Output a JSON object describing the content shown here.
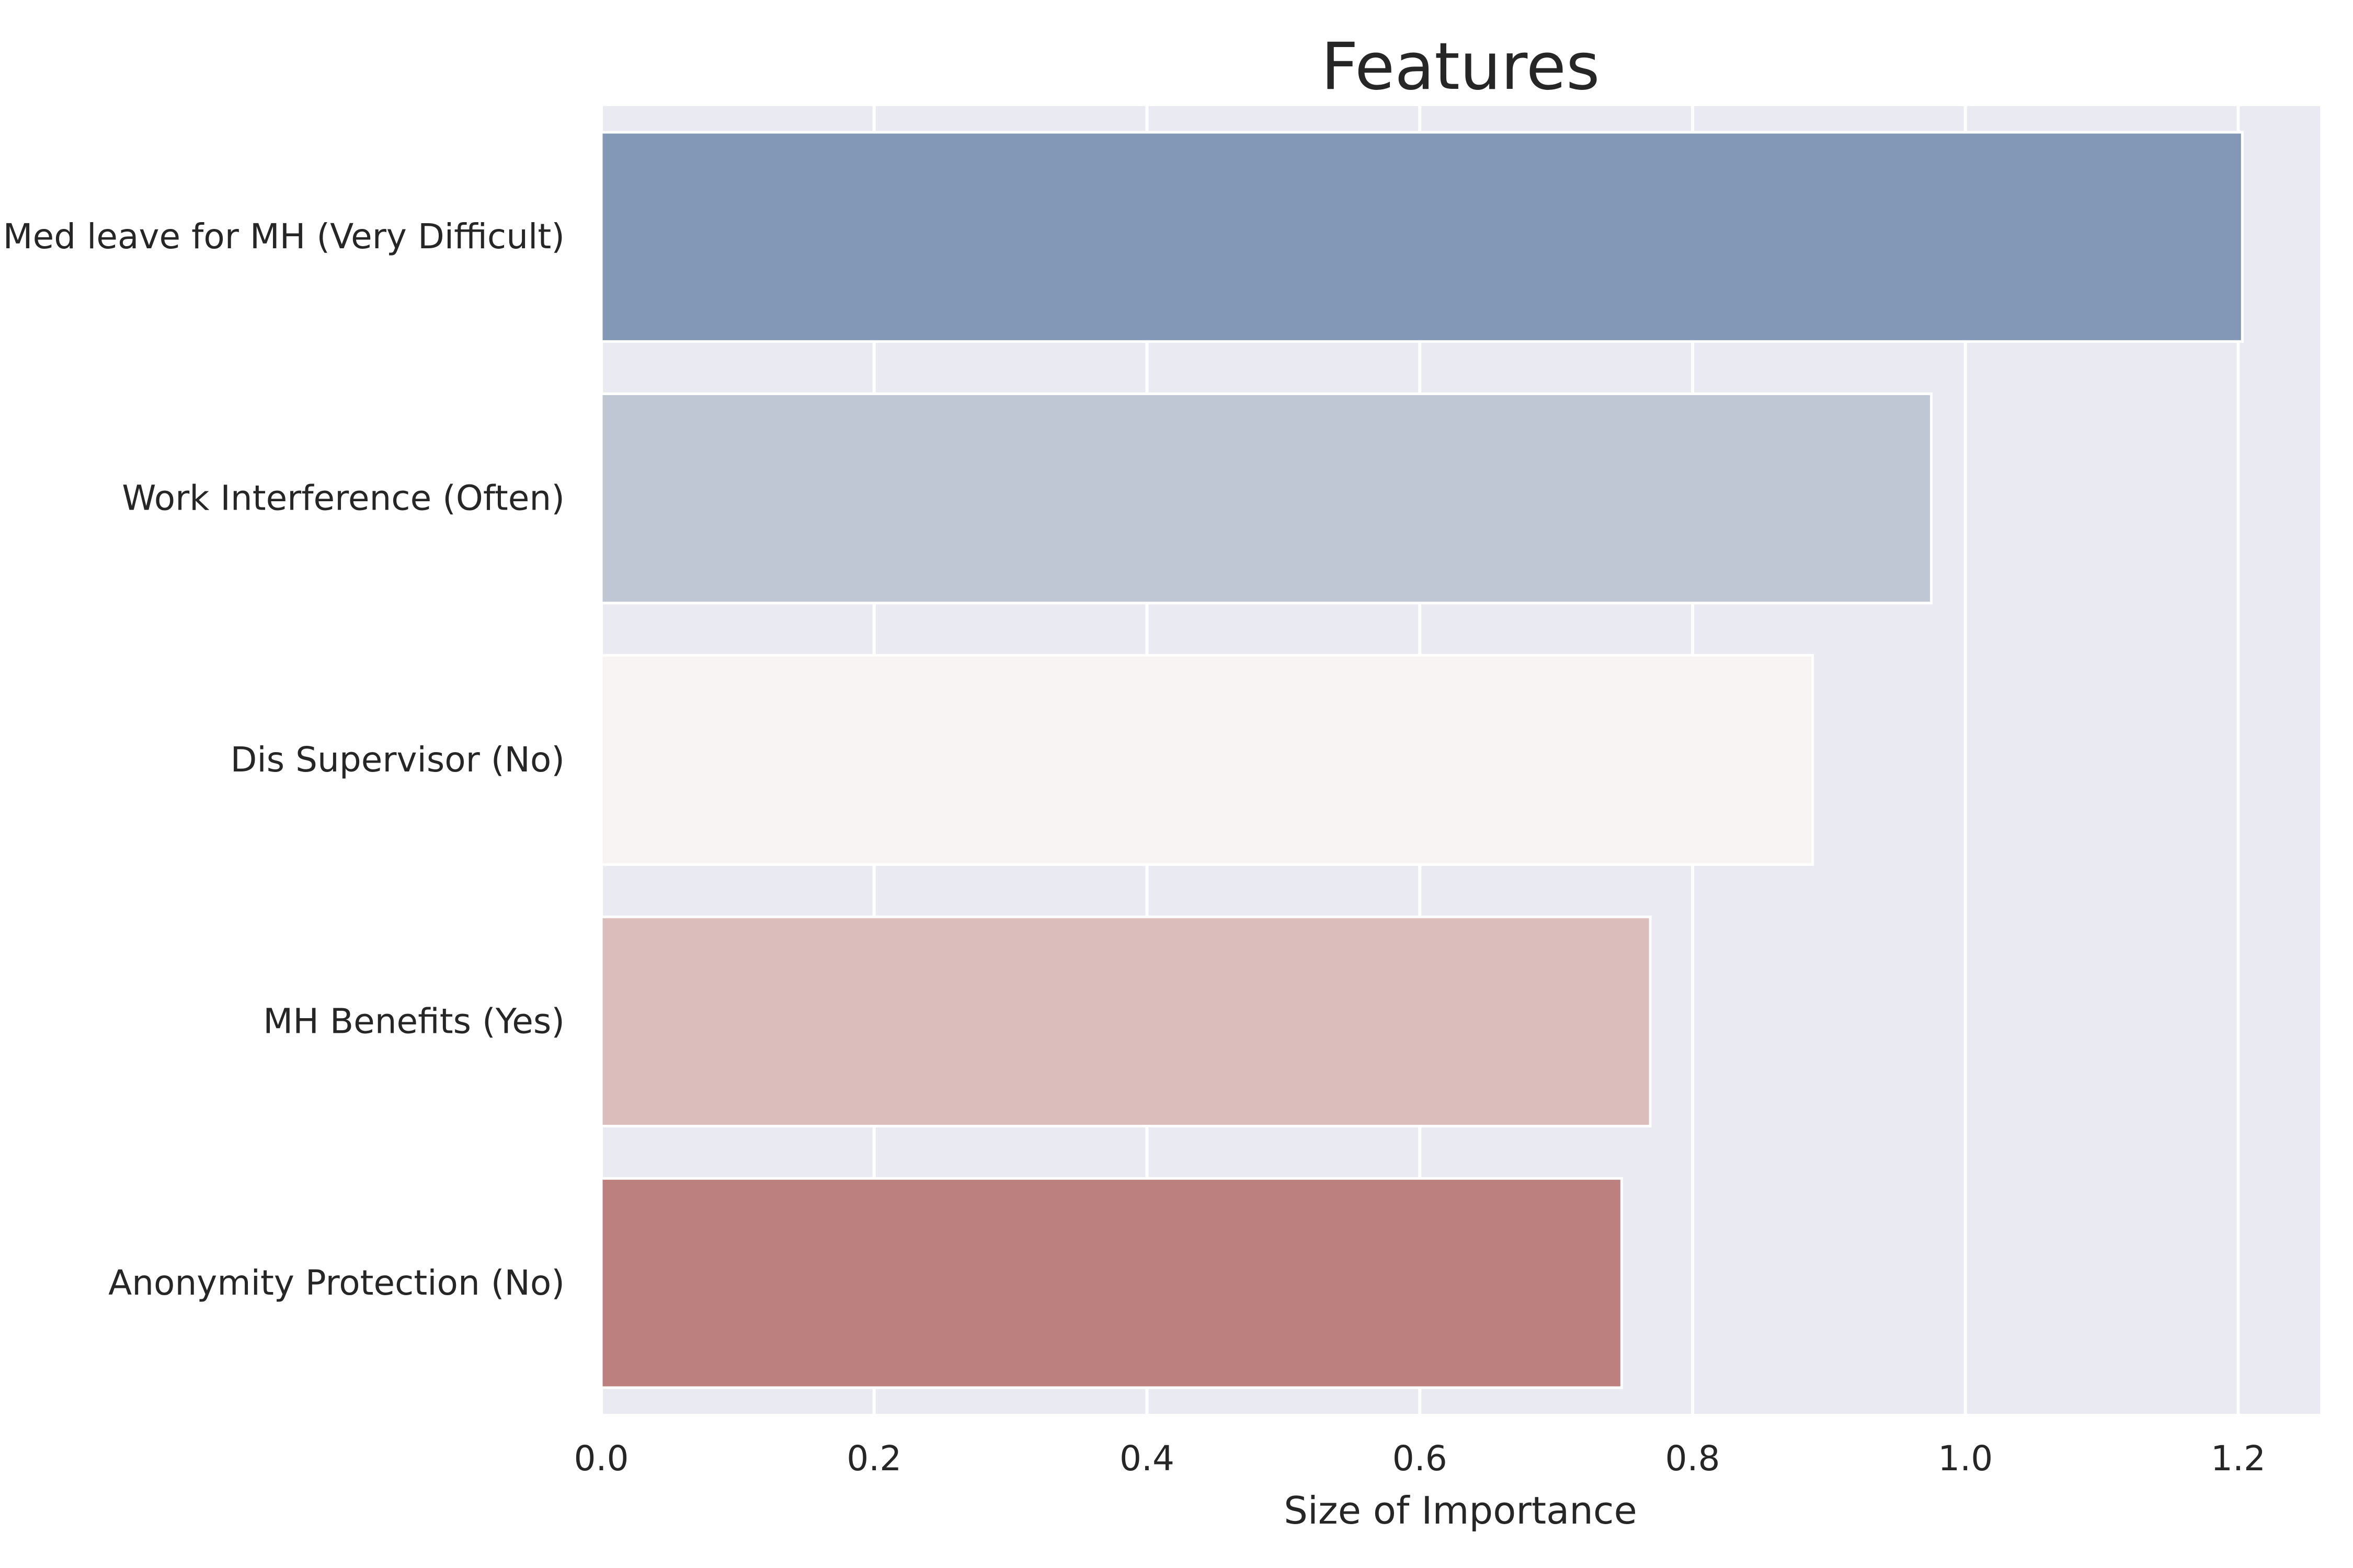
{
  "chart_data": {
    "type": "bar",
    "orientation": "horizontal",
    "title": "Features",
    "xlabel": "Size of Importance",
    "ylabel": "",
    "categories": [
      "Med leave for MH (Very Difficult)",
      "Work Interference (Often)",
      "Dis Supervisor (No)",
      "MH Benefits (Yes)",
      "Anonymity Protection (No)"
    ],
    "values": [
      1.203,
      0.975,
      0.888,
      0.769,
      0.748
    ],
    "colors": [
      "#8398b6",
      "#bfc6d4",
      "#f7f4f3",
      "#dbbdbc",
      "#bc807e"
    ],
    "xlim": [
      0.0,
      1.26
    ],
    "xticks": [
      "0.0",
      "0.2",
      "0.4",
      "0.6",
      "0.8",
      "1.0",
      "1.2"
    ],
    "grid": true,
    "background": "#eaeaf2",
    "grid_color": "#ffffff"
  }
}
